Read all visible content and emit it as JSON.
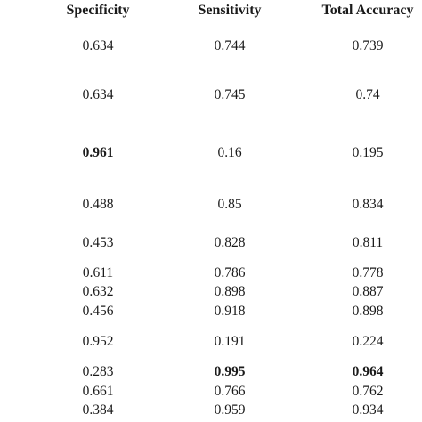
{
  "table": {
    "header": [
      "Specificity",
      "Sensitivity",
      "Total Accuracy"
    ],
    "rows": [
      [
        0.634,
        0.744,
        0.739
      ],
      [
        0.634,
        0.745,
        0.74
      ],
      [
        0.961,
        0.16,
        0.195
      ],
      [
        0.488,
        0.85,
        0.834
      ],
      [
        0.453,
        0.828,
        0.811
      ],
      [
        0.611,
        0.786,
        0.778
      ],
      [
        0.632,
        0.898,
        0.887
      ],
      [
        0.456,
        0.918,
        0.898
      ],
      [
        0.952,
        0.191,
        0.224
      ],
      [
        0.283,
        0.995,
        0.964
      ],
      [
        0.661,
        0.766,
        0.762
      ],
      [
        0.384,
        0.959,
        0.934
      ]
    ],
    "bold_cells": [
      [
        2,
        0
      ],
      [
        9,
        1
      ],
      [
        9,
        2
      ]
    ]
  }
}
